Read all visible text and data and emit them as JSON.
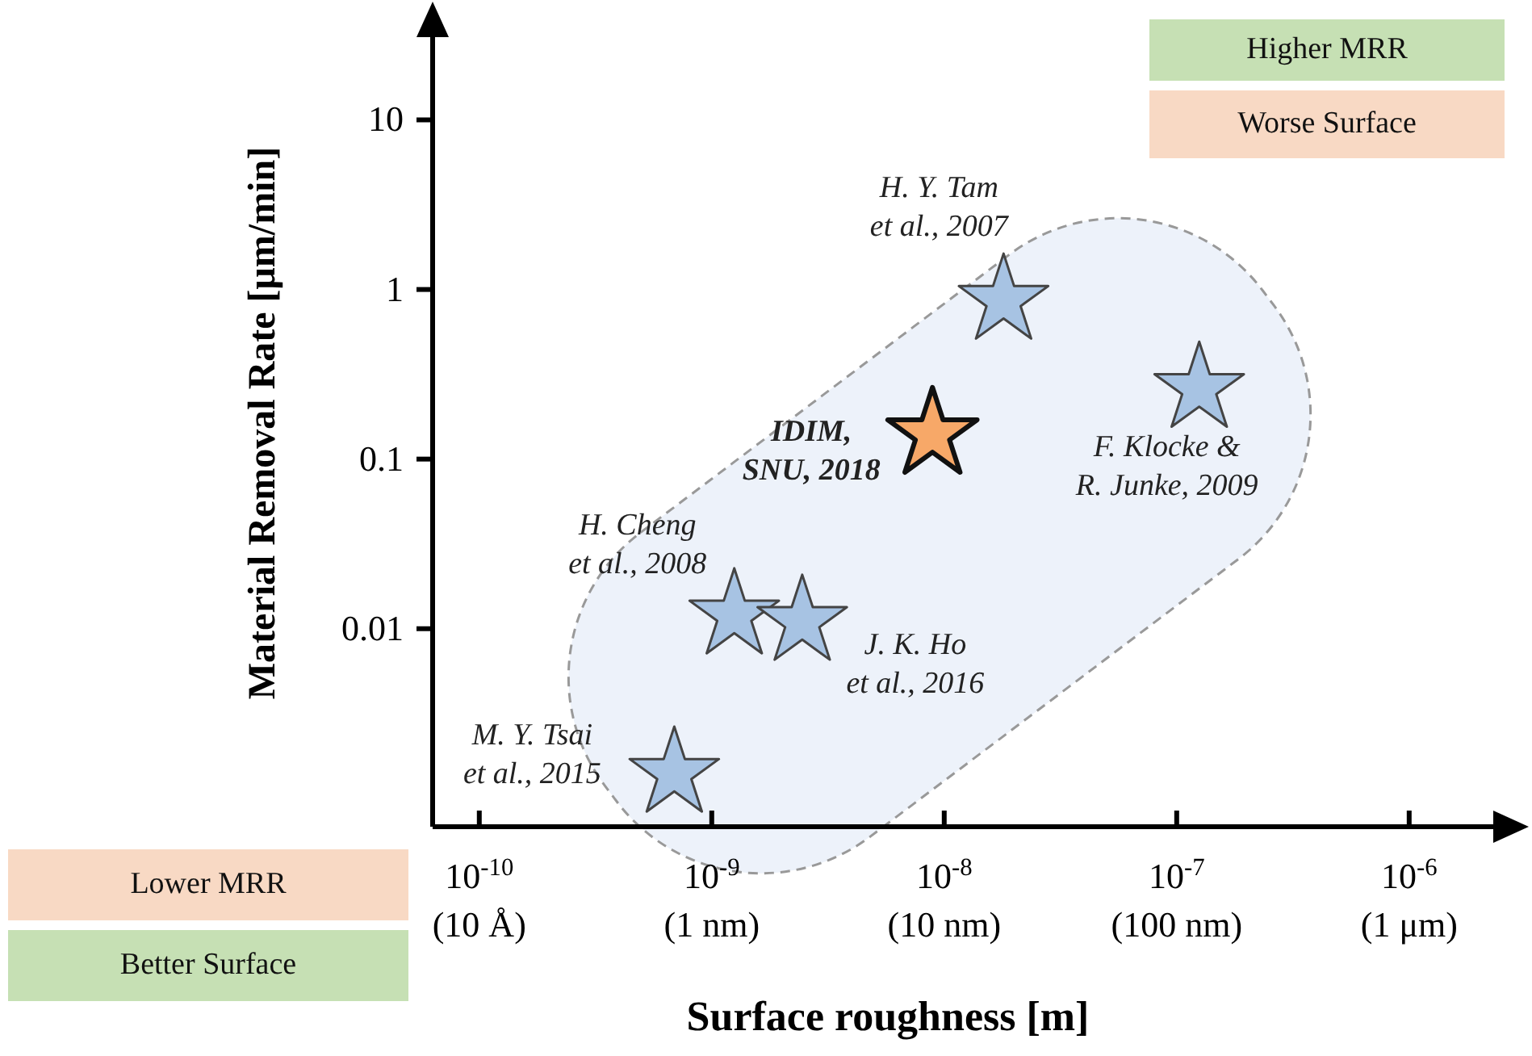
{
  "chart_data": {
    "type": "scatter",
    "xlabel": "Surface roughness [m]",
    "ylabel": "Material Removal Rate [μm/min]",
    "log": "xy",
    "marker": "star",
    "x": [
      6.9e-10,
      1.25e-09,
      2.45e-09,
      8.9e-09,
      1.8e-08,
      1.25e-07
    ],
    "values": [
      0.0014,
      0.012,
      0.011,
      0.14,
      0.86,
      0.26
    ],
    "colors": [
      "#a7c3e3",
      "#a7c3e3",
      "#a7c3e3",
      "#f7a868",
      "#a7c3e3",
      "#a7c3e3"
    ],
    "xlim": [
      6.3e-11,
      2.3e-06
    ],
    "ylim": [
      0.00068,
      40
    ],
    "xticks": [
      {
        "value": 1e-10,
        "label": "10$^{-10}$"
      },
      {
        "value": 1e-09,
        "label": "10$^{-9}$"
      },
      {
        "value": 1e-08,
        "label": "10$^{-8}$"
      },
      {
        "value": 1e-07,
        "label": "10$^{-7}$"
      },
      {
        "value": 1e-06,
        "label": "10$^{-6}$"
      }
    ],
    "yticks": [
      0.01,
      0.1,
      1,
      10
    ],
    "annotations": [
      {
        "text": "M. Y. Tsai\net al., 2015",
        "x": 6.9e-10,
        "y": 0.0014
      },
      {
        "text": "H. Cheng\net al., 2008",
        "x": 1.25e-09,
        "y": 0.012
      },
      {
        "text": "J. K. Ho\net al., 2016",
        "x": 2.45e-09,
        "y": 0.011
      },
      {
        "text": "IDIM,\nSNU, 2018",
        "x": 8.9e-09,
        "y": 0.14
      },
      {
        "text": "H. Y. Tam\net al., 2007",
        "x": 1.8e-08,
        "y": 0.86
      },
      {
        "text": "F. Klocke &\nR. Junke, 2009",
        "x": 1.25e-07,
        "y": 0.26
      },
      "Higher MRR",
      "Worse Surface",
      "Lower MRR",
      "Better Surface",
      "(10 Å)",
      "(1 nm)",
      "(10 nm)",
      "(100 nm)",
      "(1 μm)"
    ]
  }
}
